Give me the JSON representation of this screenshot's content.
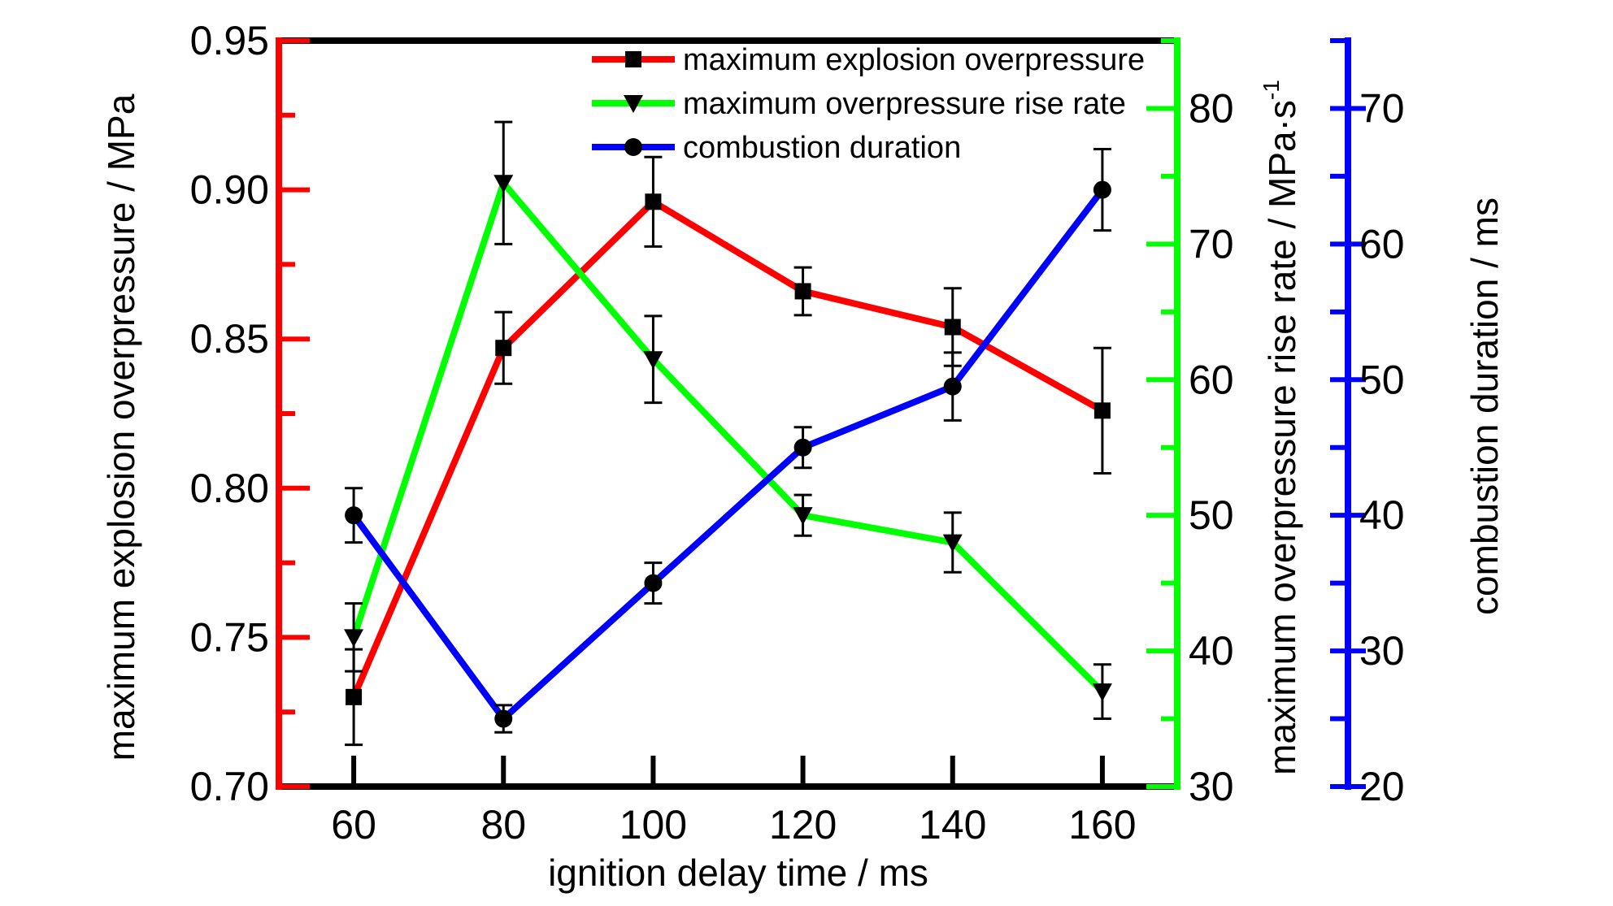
{
  "chart_data": {
    "type": "line",
    "title": "",
    "xlabel": "ignition delay time / ms",
    "x": [
      60,
      80,
      100,
      120,
      140,
      160
    ],
    "xlim": [
      50,
      170
    ],
    "x_ticks": [
      "60",
      "80",
      "100",
      "120",
      "140",
      "160"
    ],
    "grid": false,
    "legend_position": "top",
    "axes": {
      "left": {
        "label": "maximum explosion overpressure / MPa",
        "range": [
          0.7,
          0.95
        ],
        "ticks": [
          "0.70",
          "0.75",
          "0.80",
          "0.85",
          "0.90",
          "0.95"
        ],
        "color": "#ff0000"
      },
      "right1": {
        "label": "maximum overpressure rise rate / MPa·s",
        "label_superscript": "-1",
        "range": [
          30,
          85
        ],
        "ticks": [
          "30",
          "40",
          "50",
          "60",
          "70",
          "80"
        ],
        "color": "#00ff00"
      },
      "right2": {
        "label": "combustion duration / ms",
        "range": [
          20,
          75
        ],
        "ticks": [
          "20",
          "30",
          "40",
          "50",
          "60",
          "70"
        ],
        "color": "#0000ff"
      }
    },
    "series": [
      {
        "name": "maximum explosion overpressure",
        "axis": "left",
        "color": "#ff0000",
        "marker": "square",
        "values": [
          0.73,
          0.847,
          0.896,
          0.866,
          0.854,
          0.826
        ],
        "error": [
          0.016,
          0.012,
          0.015,
          0.008,
          0.013,
          0.021
        ]
      },
      {
        "name": "maximum overpressure rise rate",
        "axis": "right1",
        "color": "#00ff00",
        "marker": "triangle-down",
        "values": [
          41.0,
          74.5,
          61.5,
          50.0,
          48.0,
          37.0
        ],
        "error": [
          2.5,
          4.5,
          3.2,
          1.5,
          2.2,
          2.0
        ]
      },
      {
        "name": "combustion duration",
        "axis": "right2",
        "color": "#0000ff",
        "marker": "circle",
        "values": [
          40.0,
          25.0,
          35.0,
          45.0,
          49.5,
          64.0
        ],
        "error": [
          2.0,
          1.0,
          1.5,
          1.5,
          2.5,
          3.0
        ]
      }
    ]
  }
}
